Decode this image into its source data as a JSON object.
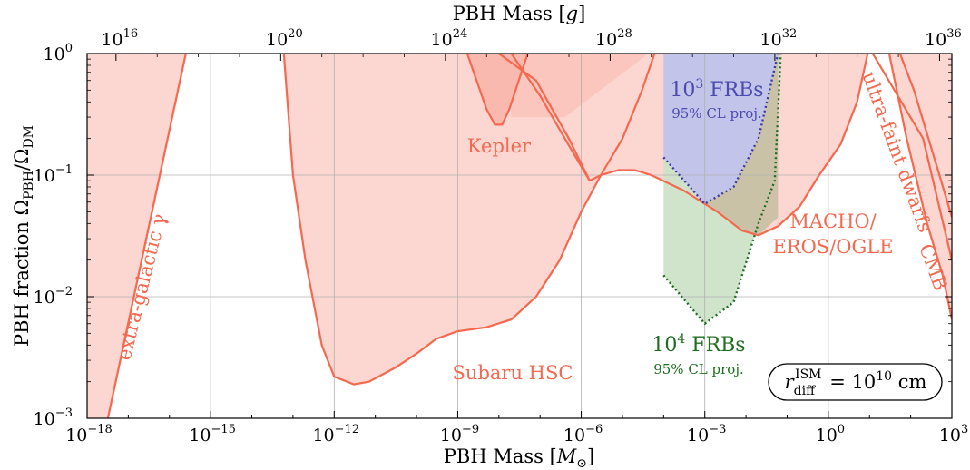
{
  "chart_data": {
    "type": "area",
    "title": "",
    "xlabel": "PBH Mass [M_⊙]",
    "ylabel": "PBH fraction Ω_PBH/Ω_DM",
    "top_xlabel": "PBH Mass [g]",
    "x_scale": "log",
    "y_scale": "log",
    "xlim": [
      1e-18,
      1000
    ],
    "ylim": [
      0.001,
      1
    ],
    "x_ticks": [
      {
        "value": 1e-18,
        "base": "10",
        "exp": "−18"
      },
      {
        "value": 1e-15,
        "base": "10",
        "exp": "−15"
      },
      {
        "value": 1e-12,
        "base": "10",
        "exp": "−12"
      },
      {
        "value": 1e-09,
        "base": "10",
        "exp": "−9"
      },
      {
        "value": 1e-06,
        "base": "10",
        "exp": "−6"
      },
      {
        "value": 0.001,
        "base": "10",
        "exp": "−3"
      },
      {
        "value": 1,
        "base": "10",
        "exp": "0"
      },
      {
        "value": 1000,
        "base": "10",
        "exp": "3"
      }
    ],
    "y_ticks": [
      {
        "value": 0.001,
        "base": "10",
        "exp": "−3"
      },
      {
        "value": 0.01,
        "base": "10",
        "exp": "−2"
      },
      {
        "value": 0.1,
        "base": "10",
        "exp": "−1"
      },
      {
        "value": 1,
        "base": "10",
        "exp": "0"
      }
    ],
    "top_ticks": [
      {
        "grams": 1e+16,
        "base": "10",
        "exp": "16"
      },
      {
        "grams": 1e+20,
        "base": "10",
        "exp": "20"
      },
      {
        "grams": 1e+24,
        "base": "10",
        "exp": "24"
      },
      {
        "grams": 1e+28,
        "base": "10",
        "exp": "28"
      },
      {
        "grams": 1e+32,
        "base": "10",
        "exp": "32"
      },
      {
        "grams": 1e+36,
        "base": "10",
        "exp": "36"
      }
    ],
    "grid": true,
    "colors": {
      "constraint_fill": "#fcd6d0",
      "constraint_fill_dark": "#f9b9ae",
      "constraint_line": "#f4694f",
      "frb1e3_fill": "#c2c2ec",
      "frb1e3_line": "#3a3aa0",
      "frb1e4_fill": "#cde2c8",
      "frb1e4_line": "#1f6e1f",
      "overlap_fill": "#c9bfa2"
    },
    "series": [
      {
        "name": "extra-galactic γ",
        "points": [
          [
            1e-18,
            0.001
          ],
          [
            3.2e-18,
            0.001
          ],
          [
            2.5e-16,
            1
          ],
          [
            1e-18,
            1
          ]
        ]
      },
      {
        "name": "Subaru HSC",
        "points": [
          [
            6e-14,
            1
          ],
          [
            1e-13,
            0.1
          ],
          [
            2e-13,
            0.02
          ],
          [
            5e-13,
            0.004
          ],
          [
            1e-12,
            0.0022
          ],
          [
            3e-12,
            0.0019
          ],
          [
            7e-12,
            0.002
          ],
          [
            3e-11,
            0.0026
          ],
          [
            1e-10,
            0.0034
          ],
          [
            3e-10,
            0.0045
          ],
          [
            1e-09,
            0.0052
          ],
          [
            5e-09,
            0.0056
          ],
          [
            2e-08,
            0.0065
          ],
          [
            8e-08,
            0.01
          ],
          [
            3e-07,
            0.02
          ],
          [
            1e-06,
            0.05
          ],
          [
            3e-06,
            0.1
          ],
          [
            1e-05,
            0.2
          ],
          [
            3e-05,
            0.5
          ],
          [
            6e-05,
            1
          ]
        ]
      },
      {
        "name": "Kepler",
        "points": [
          [
            1.7e-09,
            1
          ],
          [
            5e-09,
            0.35
          ],
          [
            8e-09,
            0.26
          ],
          [
            1.2e-08,
            0.26
          ],
          [
            1.8e-08,
            0.35
          ],
          [
            5e-08,
            1
          ]
        ]
      },
      {
        "name": "MACHO/EROS/OGLE",
        "points": [
          [
            1.6e-06,
            0.09
          ],
          [
            3e-06,
            0.1
          ],
          [
            8e-06,
            0.11
          ],
          [
            2e-05,
            0.11
          ],
          [
            5e-05,
            0.1
          ],
          [
            0.0003,
            0.075
          ],
          [
            0.002,
            0.05
          ],
          [
            0.008,
            0.035
          ],
          [
            0.02,
            0.032
          ],
          [
            0.06,
            0.038
          ],
          [
            0.2,
            0.055
          ],
          [
            0.6,
            0.1
          ],
          [
            2,
            0.18
          ],
          [
            5,
            0.4
          ],
          [
            9,
            1
          ]
        ]
      },
      {
        "name": "ultra-faint dwarfs",
        "points": [
          [
            55,
            1
          ],
          [
            120,
            0.5
          ],
          [
            500,
            0.1
          ],
          [
            1000,
            0.045
          ]
        ]
      },
      {
        "name": "CMB",
        "points": [
          [
            30,
            1
          ],
          [
            80,
            0.2
          ],
          [
            250,
            0.04
          ],
          [
            600,
            0.015
          ],
          [
            1000,
            0.0065
          ]
        ]
      },
      {
        "name": "10³ FRBs",
        "note": "95% CL proj.",
        "points": [
          [
            0.0001,
            0.14
          ],
          [
            0.001,
            0.058
          ],
          [
            0.005,
            0.08
          ],
          [
            0.02,
            0.2
          ],
          [
            0.06,
            1
          ]
        ]
      },
      {
        "name": "10⁴ FRBs",
        "note": "95% CL proj.",
        "points": [
          [
            0.0001,
            0.015
          ],
          [
            0.001,
            0.006
          ],
          [
            0.005,
            0.009
          ],
          [
            0.02,
            0.04
          ],
          [
            0.05,
            0.09
          ],
          [
            0.07,
            1
          ]
        ]
      }
    ],
    "annotation_box": {
      "r": "r",
      "sub": "diff",
      "sup": "ISM",
      "rest": " = 10",
      "exp": "10",
      "unit": " cm"
    }
  }
}
